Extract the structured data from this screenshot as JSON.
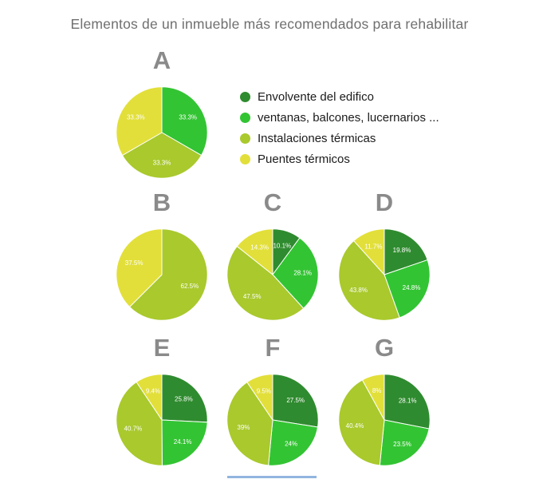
{
  "title": "Elementos de un inmueble más recomendados para rehabilitar",
  "legend": {
    "position": "right-of-pie-A",
    "items": [
      {
        "label": "Envolvente del edifico",
        "color": "#2F8B2F"
      },
      {
        "label": "ventanas, balcones, lucernarios ...",
        "color": "#33C433"
      },
      {
        "label": "Instalaciones térmicas",
        "color": "#A9C92D"
      },
      {
        "label": "Puentes térmicos",
        "color": "#E2DF3A"
      }
    ]
  },
  "chart_data": {
    "type": "pie",
    "title": "Elementos de un inmueble más recomendados para rehabilitar",
    "categories": [
      "Envolvente del edifico",
      "ventanas, balcones, lucernarios ...",
      "Instalaciones térmicas",
      "Puentes térmicos"
    ],
    "colors": [
      "#2F8B2F",
      "#33C433",
      "#A9C92D",
      "#E2DF3A"
    ],
    "label_format": "percent",
    "slice_label_color": "#ffffff",
    "start_angle_deg": 0,
    "direction": "clockwise",
    "legend_position": "top-right",
    "charts": [
      {
        "label": "A",
        "values": [
          0,
          33.3,
          33.3,
          33.3
        ],
        "slice_labels": [
          "",
          "33.3%",
          "33.3%",
          "33.3%"
        ]
      },
      {
        "label": "B",
        "values": [
          0,
          0,
          62.5,
          37.5
        ],
        "slice_labels": [
          "",
          "",
          "62.5%",
          "37.5%"
        ]
      },
      {
        "label": "C",
        "values": [
          10.1,
          28.1,
          47.5,
          14.3
        ],
        "slice_labels": [
          "10.1%",
          "28.1%",
          "47.5%",
          "14.3%"
        ]
      },
      {
        "label": "D",
        "values": [
          19.8,
          24.8,
          43.8,
          11.7
        ],
        "slice_labels": [
          "19.8%",
          "24.8%",
          "43.8%",
          "11.7%"
        ]
      },
      {
        "label": "E",
        "values": [
          25.8,
          24.1,
          40.7,
          9.4
        ],
        "slice_labels": [
          "25.8%",
          "24.1%",
          "40.7%",
          "9.4%"
        ]
      },
      {
        "label": "F",
        "values": [
          27.5,
          24,
          39,
          9.5
        ],
        "slice_labels": [
          "27.5%",
          "24%",
          "39%",
          "9.5%"
        ]
      },
      {
        "label": "G",
        "values": [
          28.1,
          23.5,
          40.4,
          8
        ],
        "slice_labels": [
          "28.1%",
          "23.5%",
          "40.4%",
          "8%"
        ]
      }
    ]
  }
}
